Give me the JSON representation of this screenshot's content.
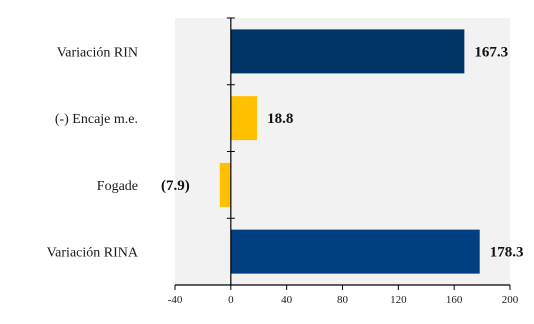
{
  "chart_data": {
    "type": "bar",
    "orientation": "horizontal",
    "categories": [
      "Variación RIN",
      "(-) Encaje m.e.",
      "Fogade",
      "Variación RINA"
    ],
    "values": [
      167.3,
      18.8,
      -7.9,
      178.3
    ],
    "value_labels": [
      "167.3",
      "18.8",
      "(7.9)",
      "178.3"
    ],
    "bar_colors": [
      "#003366",
      "#ffc000",
      "#ffc000",
      "#004080"
    ],
    "xlim": [
      -40,
      200
    ],
    "x_ticks": [
      -40,
      0,
      40,
      80,
      120,
      160,
      200
    ],
    "x_tick_labels": [
      "-40",
      "0",
      "40",
      "80",
      "120",
      "160",
      "200"
    ],
    "grid": false,
    "plot_background": "#f2f2f2",
    "title": "",
    "xlabel": "",
    "ylabel": ""
  }
}
